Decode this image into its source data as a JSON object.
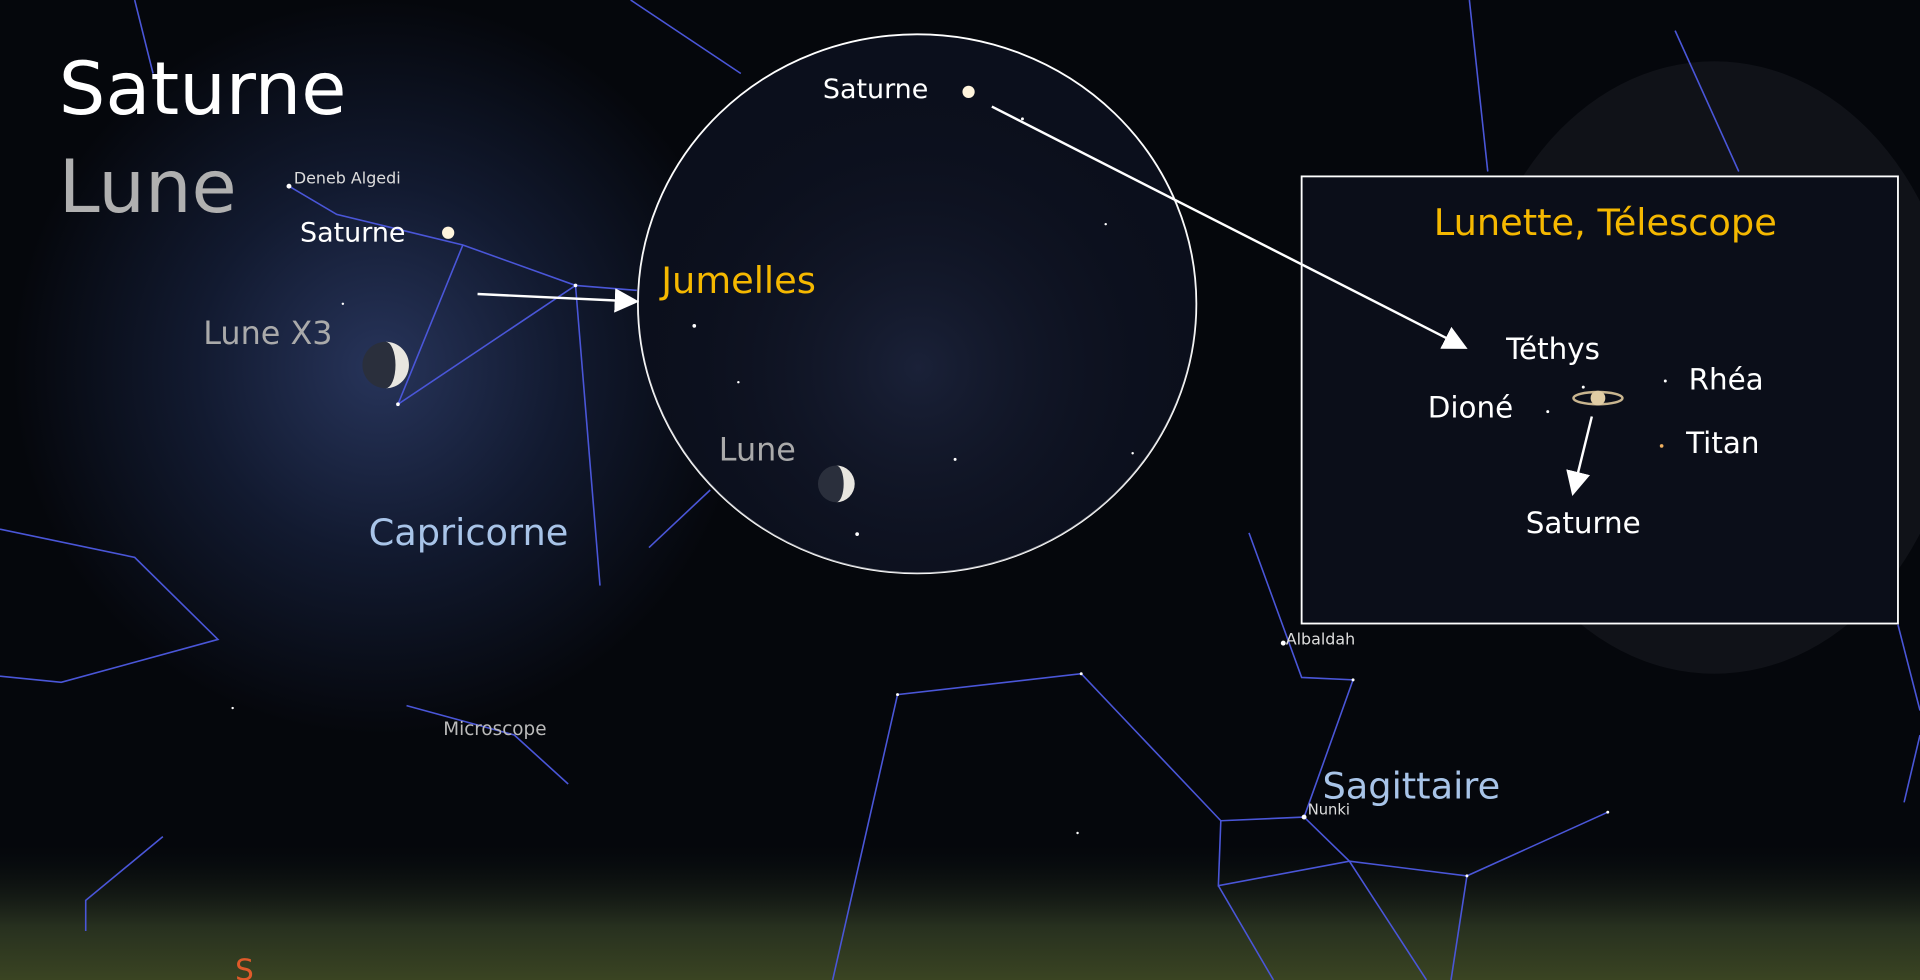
{
  "title": {
    "line1": "Saturne",
    "line2": "Lune"
  },
  "sky_labels": {
    "deneb_algedi": "Deneb Algedi",
    "saturne": "Saturne",
    "lune_x3": "Lune X3",
    "capricorne": "Capricorne",
    "microscope": "Microscope",
    "albaldah": "Albaldah",
    "nunki": "Nunki",
    "sagittaire": "Sagittaire",
    "south": "S"
  },
  "binoculars": {
    "title": "Jumelles",
    "saturne": "Saturne",
    "lune": "Lune"
  },
  "telescope": {
    "title": "Lunette, Télescope",
    "tethys": "Téthys",
    "dione": "Dioné",
    "rhea": "Rhéa",
    "titan": "Titan",
    "saturne": "Saturne"
  }
}
